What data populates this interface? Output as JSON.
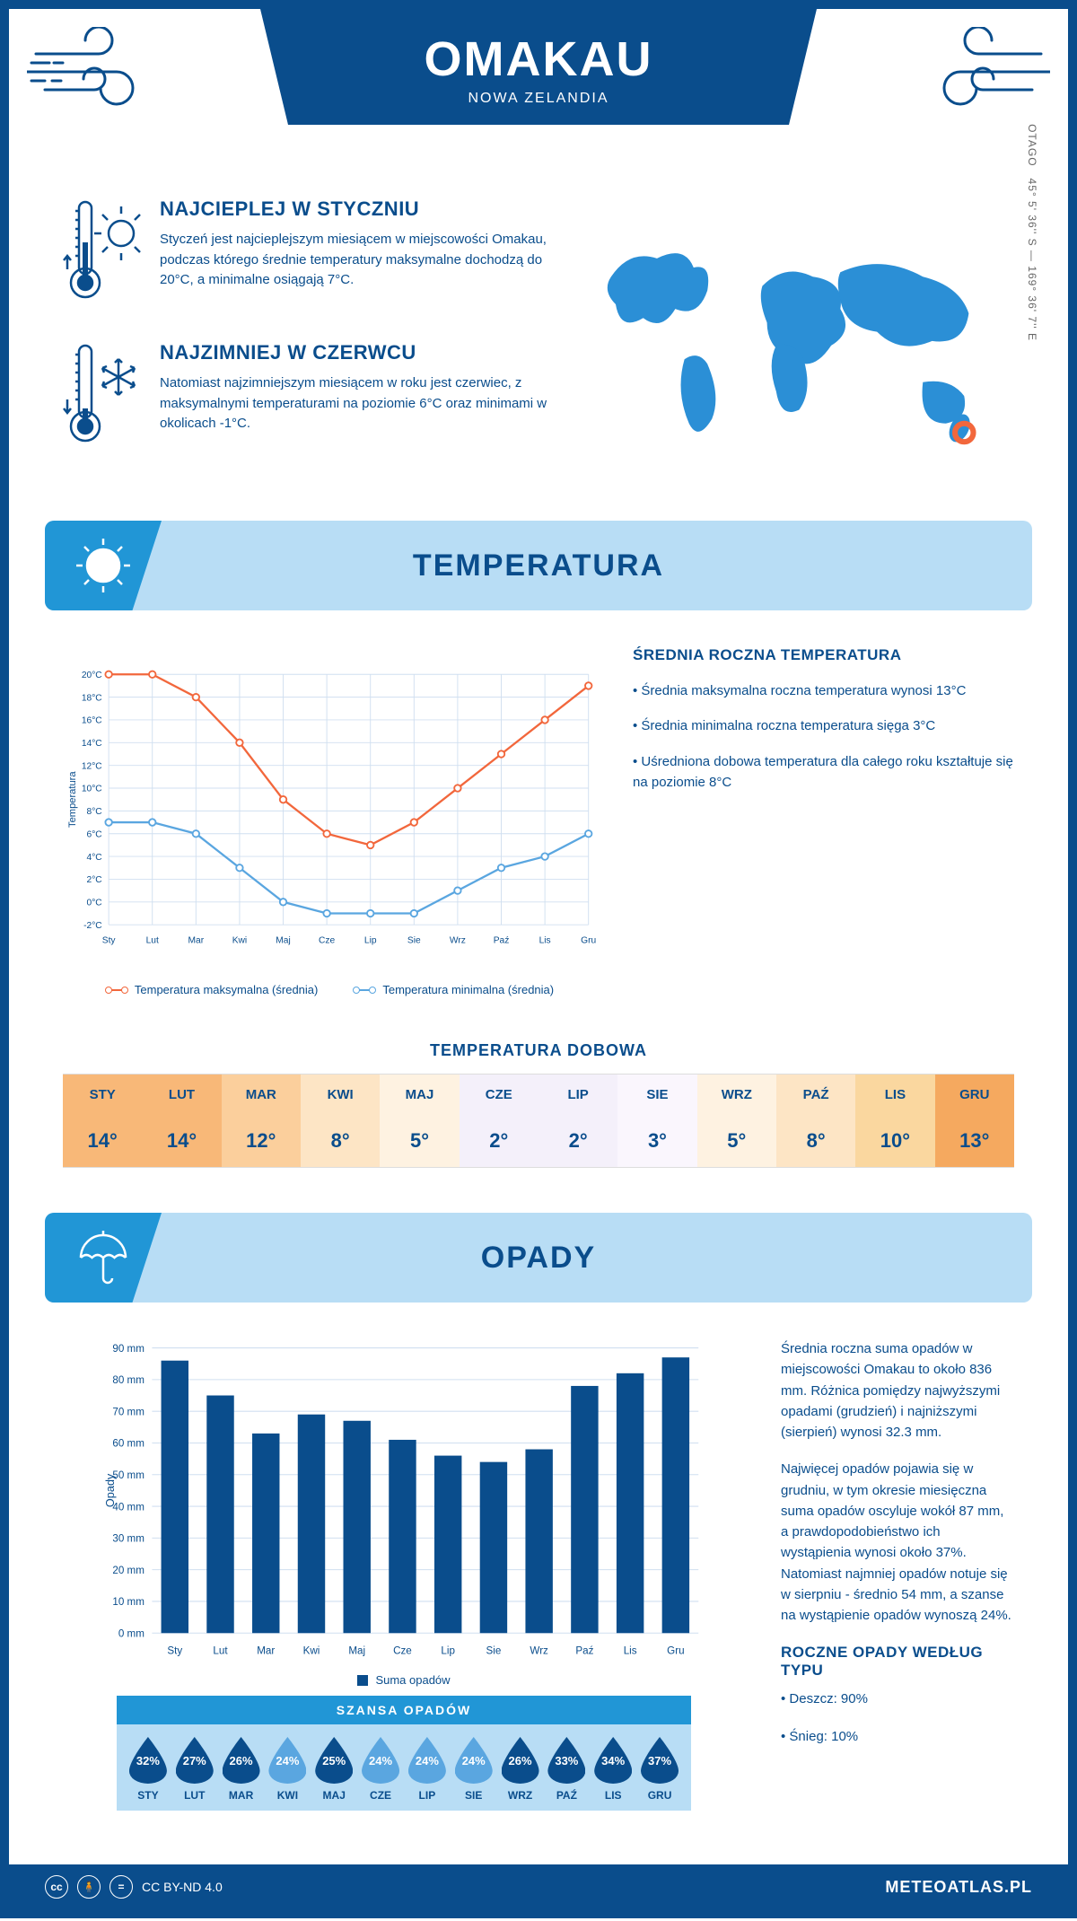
{
  "header": {
    "title": "OMAKAU",
    "subtitle": "NOWA ZELANDIA"
  },
  "coords": {
    "region": "OTAGO",
    "lat": "45° 5' 36'' S",
    "lon": "169° 36' 7'' E"
  },
  "warmest": {
    "title": "NAJCIEPLEJ W STYCZNIU",
    "text": "Styczeń jest najcieplejszym miesiącem w miejscowości Omakau, podczas którego średnie temperatury maksymalne dochodzą do 20°C, a minimalne osiągają 7°C."
  },
  "coldest": {
    "title": "NAJZIMNIEJ W CZERWCU",
    "text": "Natomiast najzimniejszym miesiącem w roku jest czerwiec, z maksymalnymi temperaturami na poziomie 6°C oraz minimami w okolicach -1°C."
  },
  "temperature": {
    "section_title": "TEMPERATURA",
    "months": [
      "Sty",
      "Lut",
      "Mar",
      "Kwi",
      "Maj",
      "Cze",
      "Lip",
      "Sie",
      "Wrz",
      "Paź",
      "Lis",
      "Gru"
    ],
    "max_series": [
      20,
      20,
      18,
      14,
      9,
      6,
      5,
      7,
      10,
      13,
      16,
      19
    ],
    "min_series": [
      7,
      7,
      6,
      3,
      0,
      -1,
      -1,
      -1,
      1,
      3,
      4,
      6
    ],
    "y_label": "Temperatura",
    "y_min": -2,
    "y_max": 20,
    "y_step": 2,
    "y_suffix": "°C",
    "max_color": "#f2673c",
    "min_color": "#5aa6e0",
    "grid_color": "#d0dff0",
    "legend_max": "Temperatura maksymalna (średnia)",
    "legend_min": "Temperatura minimalna (średnia)",
    "info_title": "ŚREDNIA ROCZNA TEMPERATURA",
    "info_points": [
      "• Średnia maksymalna roczna temperatura wynosi 13°C",
      "• Średnia minimalna roczna temperatura sięga 3°C",
      "• Uśredniona dobowa temperatura dla całego roku kształtuje się na poziomie 8°C"
    ],
    "daily_title": "TEMPERATURA DOBOWA",
    "daily_months": [
      "STY",
      "LUT",
      "MAR",
      "KWI",
      "MAJ",
      "CZE",
      "LIP",
      "SIE",
      "WRZ",
      "PAŹ",
      "LIS",
      "GRU"
    ],
    "daily_values": [
      "14°",
      "14°",
      "12°",
      "8°",
      "5°",
      "2°",
      "2°",
      "3°",
      "5°",
      "8°",
      "10°",
      "13°"
    ],
    "daily_colors": [
      "#f8b878",
      "#f8b878",
      "#fbcf9c",
      "#fde5c5",
      "#fef2e1",
      "#f4f0fa",
      "#f4f0fa",
      "#faf6fd",
      "#fef2e1",
      "#fde5c5",
      "#fad79f",
      "#f5a95f"
    ]
  },
  "precipitation": {
    "section_title": "OPADY",
    "months": [
      "Sty",
      "Lut",
      "Mar",
      "Kwi",
      "Maj",
      "Cze",
      "Lip",
      "Sie",
      "Wrz",
      "Paź",
      "Lis",
      "Gru"
    ],
    "values": [
      86,
      75,
      63,
      69,
      67,
      61,
      56,
      54,
      58,
      78,
      82,
      87
    ],
    "y_label": "Opady",
    "y_min": 0,
    "y_max": 90,
    "y_step": 10,
    "y_suffix": " mm",
    "bar_color": "#0a4d8c",
    "grid_color": "#d0dff0",
    "legend": "Suma opadów",
    "info_p1": "Średnia roczna suma opadów w miejscowości Omakau to około 836 mm. Różnica pomiędzy najwyższymi opadami (grudzień) i najniższymi (sierpień) wynosi 32.3 mm.",
    "info_p2": "Najwięcej opadów pojawia się w grudniu, w tym okresie miesięczna suma opadów oscyluje wokół 87 mm, a prawdopodobieństwo ich wystąpienia wynosi około 37%. Natomiast najmniej opadów notuje się w sierpniu - średnio 54 mm, a szanse na wystąpienie opadów wynoszą 24%.",
    "type_title": "ROCZNE OPADY WEDŁUG TYPU",
    "type_points": [
      "• Deszcz: 90%",
      "• Śnieg: 10%"
    ],
    "chance_title": "SZANSA OPADÓW",
    "chance_months": [
      "STY",
      "LUT",
      "MAR",
      "KWI",
      "MAJ",
      "CZE",
      "LIP",
      "SIE",
      "WRZ",
      "PAŹ",
      "LIS",
      "GRU"
    ],
    "chance_values": [
      "32%",
      "27%",
      "26%",
      "24%",
      "25%",
      "24%",
      "24%",
      "24%",
      "26%",
      "33%",
      "34%",
      "37%"
    ],
    "chance_colors": [
      "#0a4d8c",
      "#0a4d8c",
      "#0a4d8c",
      "#5aa6e0",
      "#0a4d8c",
      "#5aa6e0",
      "#5aa6e0",
      "#5aa6e0",
      "#0a4d8c",
      "#0a4d8c",
      "#0a4d8c",
      "#0a4d8c"
    ]
  },
  "footer": {
    "license": "CC BY-ND 4.0",
    "site": "METEOATLAS.PL"
  }
}
